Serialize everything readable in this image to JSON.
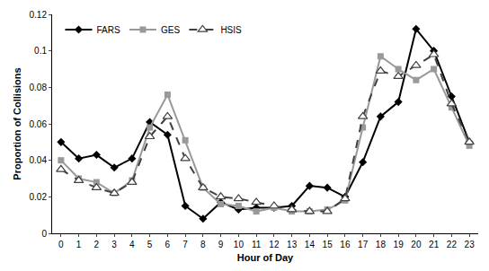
{
  "chart_data": {
    "type": "line",
    "x_label": "Hour of Day",
    "y_label": "Proportion of Collisions",
    "categories": [
      "0",
      "1",
      "2",
      "3",
      "4",
      "5",
      "6",
      "7",
      "8",
      "9",
      "10",
      "11",
      "12",
      "13",
      "14",
      "15",
      "16",
      "17",
      "18",
      "19",
      "20",
      "21",
      "22",
      "23"
    ],
    "series": [
      {
        "name": "FARS",
        "color": "#000000",
        "marker": "diamond",
        "line_style": "solid",
        "values": [
          0.05,
          0.041,
          0.043,
          0.036,
          0.041,
          0.061,
          0.054,
          0.015,
          0.008,
          0.017,
          0.013,
          0.014,
          0.014,
          0.015,
          0.026,
          0.025,
          0.02,
          0.039,
          0.064,
          0.072,
          0.112,
          0.1,
          0.075,
          0.05
        ]
      },
      {
        "name": "GES",
        "color": "#999999",
        "marker": "square",
        "line_style": "solid",
        "values": [
          0.04,
          0.03,
          0.028,
          0.022,
          0.029,
          0.058,
          0.076,
          0.051,
          0.025,
          0.016,
          0.015,
          0.012,
          0.014,
          0.012,
          0.012,
          0.013,
          0.018,
          0.058,
          0.097,
          0.09,
          0.084,
          0.09,
          0.069,
          0.048
        ]
      },
      {
        "name": "HSIS",
        "color": "#404040",
        "marker": "triangle-open",
        "line_style": "dash",
        "values": [
          0.035,
          0.029,
          0.025,
          0.022,
          0.028,
          0.053,
          0.064,
          0.041,
          0.025,
          0.02,
          0.019,
          0.017,
          0.015,
          0.013,
          0.012,
          0.012,
          0.019,
          0.064,
          0.089,
          0.086,
          0.092,
          0.098,
          0.071,
          0.05
        ]
      }
    ],
    "ylim": [
      0,
      0.12
    ],
    "yticks": [
      0,
      0.02,
      0.04,
      0.06,
      0.08,
      0.1,
      0.12
    ],
    "grid": false,
    "legend": "top-left"
  }
}
